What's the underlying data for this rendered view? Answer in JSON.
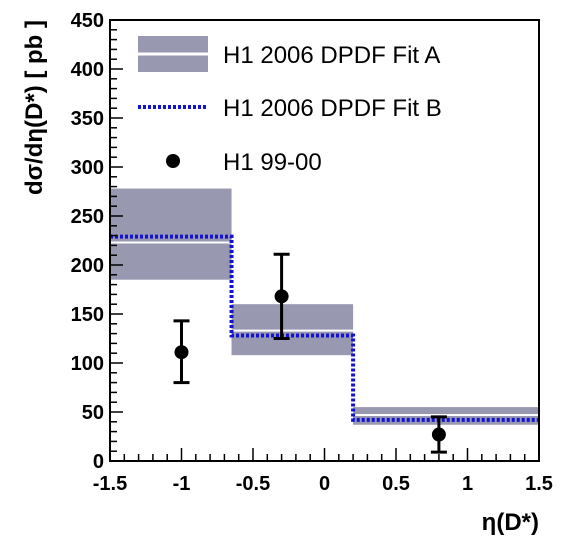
{
  "chart_data": {
    "type": "step-histogram",
    "xlabel": "η(D*)",
    "ylabel": "dσ/dη(D*) [ pb ]",
    "xlim": [
      -1.5,
      1.5
    ],
    "ylim": [
      0,
      450
    ],
    "x_ticks": [
      "-1.5",
      "-1",
      "-0.5",
      "0",
      "0.5",
      "1",
      "1.5"
    ],
    "y_ticks": [
      "0",
      "50",
      "100",
      "150",
      "200",
      "250",
      "300",
      "350",
      "400",
      "450"
    ],
    "bins": [
      [
        -1.5,
        -0.65
      ],
      [
        -0.65,
        0.2
      ],
      [
        0.2,
        1.5
      ]
    ],
    "series": [
      {
        "name": "H1 2006 DPDF Fit A",
        "style": "band",
        "color": "#9898b0",
        "central": [
          223,
          133,
          47
        ],
        "lower": [
          185,
          108,
          37
        ],
        "upper": [
          278,
          160,
          55
        ]
      },
      {
        "name": "H1 2006 DPDF Fit B",
        "style": "dashed-line",
        "color": "#1414d0",
        "values": [
          229,
          128,
          42
        ]
      },
      {
        "name": "H1 99-00",
        "style": "points",
        "color": "#000000",
        "x": [
          -1.0,
          -0.3,
          0.8
        ],
        "y": [
          111,
          168,
          27
        ],
        "y_low": [
          80,
          125,
          9
        ],
        "y_high": [
          143,
          211,
          45
        ]
      }
    ],
    "legend_position": "top-right"
  }
}
